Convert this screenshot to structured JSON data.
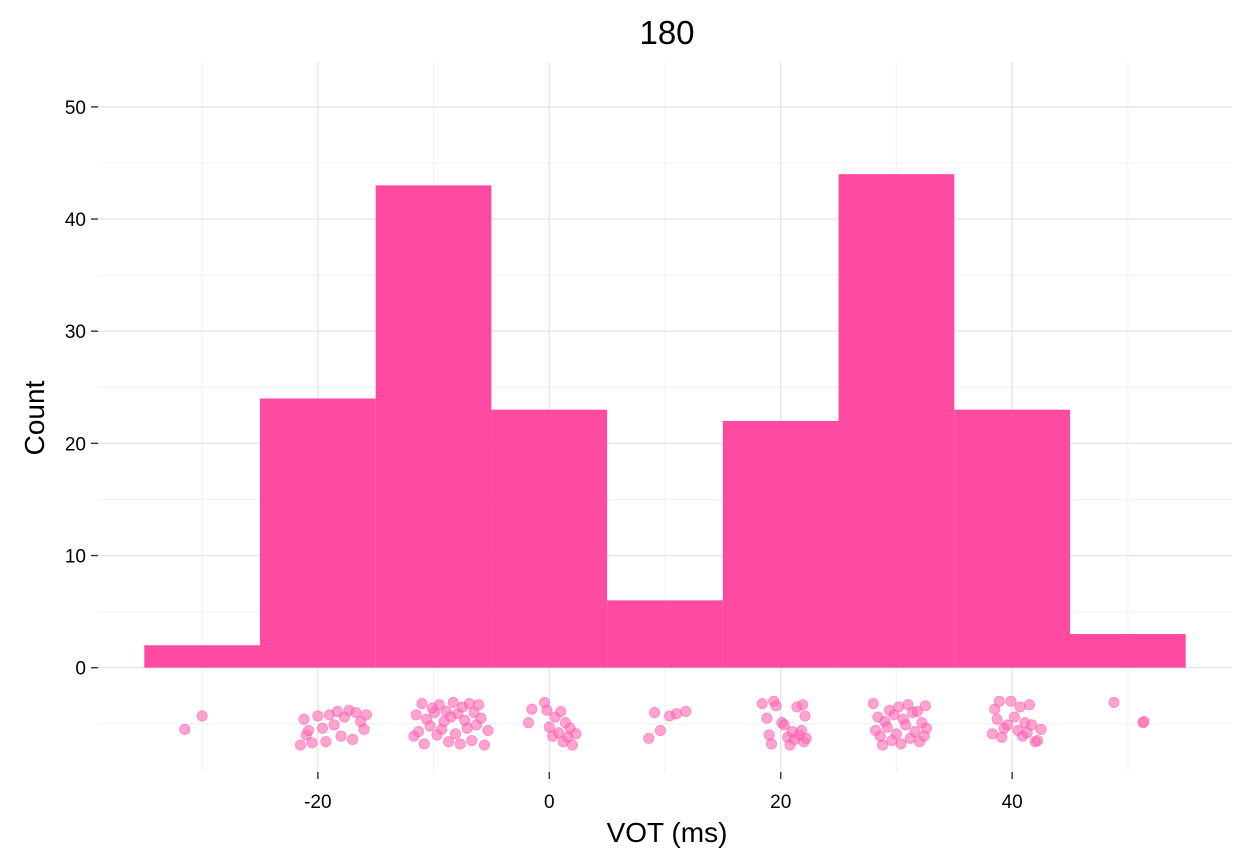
{
  "chart_data": {
    "type": "bar",
    "title": "180",
    "xlabel": "VOT (ms)",
    "ylabel": "Count",
    "xlim": [
      -39,
      59
    ],
    "ylim": [
      -9.3,
      54
    ],
    "x_ticks": [
      -20,
      0,
      20,
      40
    ],
    "y_ticks": [
      0,
      10,
      20,
      30,
      40,
      50
    ],
    "grid": true,
    "bar_color": "#ff4aa2",
    "point_color": "#ff6bb5",
    "series": [
      {
        "bins": [
          {
            "x_start": -35,
            "x_end": -25,
            "count": 2
          },
          {
            "x_start": -25,
            "x_end": -15,
            "count": 24
          },
          {
            "x_start": -15,
            "x_end": -5,
            "count": 43
          },
          {
            "x_start": -5,
            "x_end": 5,
            "count": 23
          },
          {
            "x_start": 5,
            "x_end": 15,
            "count": 6
          },
          {
            "x_start": 15,
            "x_end": 25,
            "count": 22
          },
          {
            "x_start": 25,
            "x_end": 35,
            "count": 44
          },
          {
            "x_start": 35,
            "x_end": 45,
            "count": 23
          },
          {
            "x_start": 45,
            "x_end": 55,
            "count": 3
          }
        ]
      }
    ],
    "points": [
      {
        "x": -31.5,
        "y": -5.5
      },
      {
        "x": -30.0,
        "y": -4.3
      },
      {
        "x": -21.5,
        "y": -6.9
      },
      {
        "x": -21.2,
        "y": -4.6
      },
      {
        "x": -21.0,
        "y": -6.0
      },
      {
        "x": -20.8,
        "y": -5.6
      },
      {
        "x": -20.5,
        "y": -6.7
      },
      {
        "x": -20.0,
        "y": -4.3
      },
      {
        "x": -19.6,
        "y": -5.4
      },
      {
        "x": -19.3,
        "y": -6.6
      },
      {
        "x": -19.0,
        "y": -4.2
      },
      {
        "x": -18.6,
        "y": -5.1
      },
      {
        "x": -18.3,
        "y": -3.9
      },
      {
        "x": -18.0,
        "y": -6.1
      },
      {
        "x": -17.7,
        "y": -4.4
      },
      {
        "x": -17.3,
        "y": -3.8
      },
      {
        "x": -17.0,
        "y": -6.4
      },
      {
        "x": -16.7,
        "y": -4.0
      },
      {
        "x": -16.3,
        "y": -4.8
      },
      {
        "x": -16.0,
        "y": -5.5
      },
      {
        "x": -15.8,
        "y": -4.2
      },
      {
        "x": -11.7,
        "y": -6.1
      },
      {
        "x": -11.5,
        "y": -4.2
      },
      {
        "x": -11.3,
        "y": -5.7
      },
      {
        "x": -11.0,
        "y": -3.2
      },
      {
        "x": -10.8,
        "y": -6.8
      },
      {
        "x": -10.6,
        "y": -4.6
      },
      {
        "x": -10.3,
        "y": -5.2
      },
      {
        "x": -10.1,
        "y": -3.6
      },
      {
        "x": -9.9,
        "y": -4.0
      },
      {
        "x": -9.7,
        "y": -6.0
      },
      {
        "x": -9.5,
        "y": -3.3
      },
      {
        "x": -9.3,
        "y": -5.5
      },
      {
        "x": -9.1,
        "y": -4.8
      },
      {
        "x": -8.9,
        "y": -3.9
      },
      {
        "x": -8.7,
        "y": -6.6
      },
      {
        "x": -8.5,
        "y": -4.4
      },
      {
        "x": -8.3,
        "y": -3.1
      },
      {
        "x": -8.1,
        "y": -5.9
      },
      {
        "x": -7.9,
        "y": -4.1
      },
      {
        "x": -7.7,
        "y": -6.8
      },
      {
        "x": -7.5,
        "y": -3.5
      },
      {
        "x": -7.3,
        "y": -4.7
      },
      {
        "x": -7.1,
        "y": -5.4
      },
      {
        "x": -6.9,
        "y": -3.2
      },
      {
        "x": -6.7,
        "y": -6.5
      },
      {
        "x": -6.5,
        "y": -4.0
      },
      {
        "x": -6.3,
        "y": -5.1
      },
      {
        "x": -6.1,
        "y": -3.3
      },
      {
        "x": -5.9,
        "y": -4.5
      },
      {
        "x": -5.6,
        "y": -6.9
      },
      {
        "x": -5.3,
        "y": -5.6
      },
      {
        "x": -1.8,
        "y": -4.9
      },
      {
        "x": -1.5,
        "y": -3.7
      },
      {
        "x": -0.4,
        "y": -3.1
      },
      {
        "x": -0.2,
        "y": -3.8
      },
      {
        "x": 0.0,
        "y": -5.3
      },
      {
        "x": 0.3,
        "y": -6.1
      },
      {
        "x": 0.5,
        "y": -4.4
      },
      {
        "x": 0.8,
        "y": -5.8
      },
      {
        "x": 1.0,
        "y": -3.9
      },
      {
        "x": 1.2,
        "y": -6.6
      },
      {
        "x": 1.4,
        "y": -4.9
      },
      {
        "x": 1.6,
        "y": -6.2
      },
      {
        "x": 1.8,
        "y": -5.4
      },
      {
        "x": 2.0,
        "y": -6.9
      },
      {
        "x": 2.3,
        "y": -5.9
      },
      {
        "x": 8.6,
        "y": -6.3
      },
      {
        "x": 9.1,
        "y": -4.0
      },
      {
        "x": 9.6,
        "y": -5.6
      },
      {
        "x": 10.4,
        "y": -4.3
      },
      {
        "x": 11.0,
        "y": -4.1
      },
      {
        "x": 11.8,
        "y": -3.9
      },
      {
        "x": 18.4,
        "y": -3.2
      },
      {
        "x": 18.8,
        "y": -4.5
      },
      {
        "x": 19.0,
        "y": -6.0
      },
      {
        "x": 19.2,
        "y": -6.8
      },
      {
        "x": 19.4,
        "y": -3.0
      },
      {
        "x": 19.6,
        "y": -3.4
      },
      {
        "x": 20.1,
        "y": -4.9
      },
      {
        "x": 20.3,
        "y": -5.1
      },
      {
        "x": 20.6,
        "y": -6.2
      },
      {
        "x": 20.8,
        "y": -6.9
      },
      {
        "x": 21.0,
        "y": -5.7
      },
      {
        "x": 21.2,
        "y": -6.4
      },
      {
        "x": 21.4,
        "y": -3.5
      },
      {
        "x": 21.6,
        "y": -6.0
      },
      {
        "x": 21.8,
        "y": -5.6
      },
      {
        "x": 22.0,
        "y": -6.6
      },
      {
        "x": 21.9,
        "y": -3.3
      },
      {
        "x": 22.1,
        "y": -4.3
      },
      {
        "x": 22.2,
        "y": -6.3
      },
      {
        "x": 28.0,
        "y": -3.2
      },
      {
        "x": 28.2,
        "y": -5.6
      },
      {
        "x": 28.4,
        "y": -4.4
      },
      {
        "x": 28.6,
        "y": -6.1
      },
      {
        "x": 28.8,
        "y": -6.9
      },
      {
        "x": 29.0,
        "y": -4.8
      },
      {
        "x": 29.2,
        "y": -5.3
      },
      {
        "x": 29.4,
        "y": -3.8
      },
      {
        "x": 29.6,
        "y": -6.5
      },
      {
        "x": 29.8,
        "y": -4.2
      },
      {
        "x": 30.0,
        "y": -5.9
      },
      {
        "x": 30.2,
        "y": -3.5
      },
      {
        "x": 30.4,
        "y": -6.8
      },
      {
        "x": 30.6,
        "y": -4.6
      },
      {
        "x": 30.8,
        "y": -5.1
      },
      {
        "x": 31.0,
        "y": -3.3
      },
      {
        "x": 31.2,
        "y": -6.3
      },
      {
        "x": 31.4,
        "y": -4.0
      },
      {
        "x": 31.6,
        "y": -5.7
      },
      {
        "x": 31.8,
        "y": -3.9
      },
      {
        "x": 32.0,
        "y": -6.6
      },
      {
        "x": 32.2,
        "y": -4.9
      },
      {
        "x": 32.4,
        "y": -6.1
      },
      {
        "x": 32.5,
        "y": -3.4
      },
      {
        "x": 32.6,
        "y": -5.4
      },
      {
        "x": 38.3,
        "y": -5.9
      },
      {
        "x": 38.5,
        "y": -3.7
      },
      {
        "x": 38.7,
        "y": -4.6
      },
      {
        "x": 38.9,
        "y": -3.0
      },
      {
        "x": 39.1,
        "y": -6.2
      },
      {
        "x": 39.3,
        "y": -5.4
      },
      {
        "x": 39.6,
        "y": -5.1
      },
      {
        "x": 39.9,
        "y": -3.0
      },
      {
        "x": 40.2,
        "y": -4.4
      },
      {
        "x": 40.5,
        "y": -5.6
      },
      {
        "x": 40.7,
        "y": -3.5
      },
      {
        "x": 40.9,
        "y": -6.1
      },
      {
        "x": 41.1,
        "y": -4.9
      },
      {
        "x": 41.3,
        "y": -5.8
      },
      {
        "x": 41.5,
        "y": -3.3
      },
      {
        "x": 41.7,
        "y": -5.1
      },
      {
        "x": 42.0,
        "y": -6.6
      },
      {
        "x": 42.2,
        "y": -6.5
      },
      {
        "x": 42.5,
        "y": -5.5
      },
      {
        "x": 48.8,
        "y": -3.1
      },
      {
        "x": 51.3,
        "y": -4.9
      },
      {
        "x": 51.4,
        "y": -4.8
      }
    ]
  }
}
